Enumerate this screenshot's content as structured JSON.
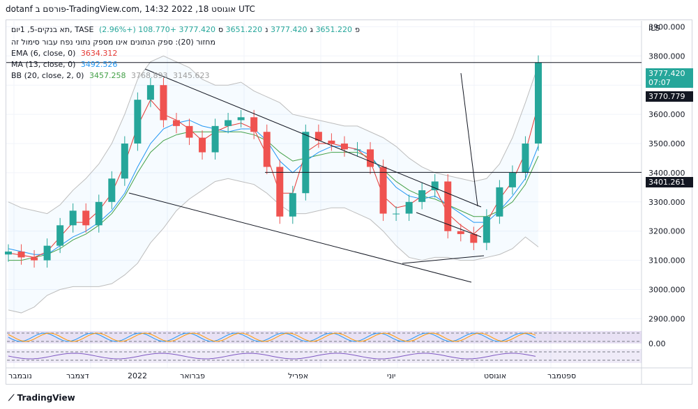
{
  "header": {
    "title": "dotanf פורסם ב-TradingView.com, 14:32 2022 ,18 אוגוסט UTC"
  },
  "legend": {
    "symbol": "תא בנקים-5, 1יום, TASE",
    "ohlc": {
      "o_label": "פ",
      "o": "3651.220",
      "h_label": "ג",
      "h": "3777.420",
      "l_label": "נ",
      "l": "3651.220",
      "c_label": "ס",
      "c": "3777.420",
      "change": "+108.770 (+2.96%)"
    },
    "volume_note": "מחזור (20): ספק הנתונים אינו מספק נתוני נפח עבור סימול זה",
    "ema": {
      "label": "EMA (6, close, 0)",
      "value": "3634.312",
      "color": "#e53935"
    },
    "ma": {
      "label": "MA (13, close, 0)",
      "value": "3492.526",
      "color": "#2196f3"
    },
    "bb": {
      "label": "BB (20, close, 2, 0)",
      "value": "3457.258",
      "value2": "3768.893",
      "value3": "3145.623",
      "color": "#43a047"
    }
  },
  "price_axis": {
    "unit": "ILS",
    "ticks": [
      "3900.000",
      "3800.000",
      "3700.000",
      "3600.000",
      "3500.000",
      "3400.000",
      "3300.000",
      "3200.000",
      "3100.000",
      "3000.000",
      "2900.000"
    ]
  },
  "oscillator_axis": {
    "ticks": [
      "0.00"
    ]
  },
  "price_labels": {
    "last": {
      "value": "3777.420",
      "countdown": "07:07",
      "color": "#26a69a"
    },
    "level1": {
      "value": "3770.779"
    },
    "level2": {
      "value": "3401.261"
    }
  },
  "time_axis": {
    "labels": [
      "נובמבר",
      "דצמבר",
      "2022",
      "פברואר",
      "אפריל",
      "יוני",
      "אוגוסט",
      "ספטמבר"
    ]
  },
  "footer": {
    "brand": "TradingView"
  },
  "chart_data": {
    "type": "candlestick",
    "ylim": [
      2870,
      3920
    ],
    "grid": true,
    "x": [
      "2021-11-01",
      "2021-11-08",
      "2021-11-15",
      "2021-11-22",
      "2021-11-29",
      "2021-12-06",
      "2021-12-13",
      "2021-12-20",
      "2021-12-27",
      "2022-01-03",
      "2022-01-10",
      "2022-01-17",
      "2022-01-24",
      "2022-01-31",
      "2022-02-07",
      "2022-02-14",
      "2022-02-21",
      "2022-02-28",
      "2022-03-07",
      "2022-03-14",
      "2022-03-21",
      "2022-03-28",
      "2022-04-04",
      "2022-04-11",
      "2022-04-18",
      "2022-04-25",
      "2022-05-02",
      "2022-05-09",
      "2022-05-16",
      "2022-05-23",
      "2022-05-30",
      "2022-06-06",
      "2022-06-13",
      "2022-06-20",
      "2022-06-27",
      "2022-07-04",
      "2022-07-11",
      "2022-07-18",
      "2022-07-25",
      "2022-08-01",
      "2022-08-08",
      "2022-08-15"
    ],
    "close": [
      3130,
      3110,
      3100,
      3150,
      3220,
      3270,
      3220,
      3300,
      3380,
      3500,
      3650,
      3700,
      3580,
      3560,
      3520,
      3470,
      3560,
      3580,
      3590,
      3540,
      3420,
      3250,
      3330,
      3540,
      3510,
      3500,
      3480,
      3480,
      3420,
      3260,
      3260,
      3300,
      3340,
      3370,
      3200,
      3190,
      3160,
      3250,
      3350,
      3400,
      3500,
      3777
    ],
    "ema6": [
      3125,
      3118,
      3110,
      3130,
      3180,
      3230,
      3230,
      3270,
      3330,
      3430,
      3560,
      3650,
      3600,
      3580,
      3550,
      3510,
      3540,
      3560,
      3570,
      3550,
      3460,
      3330,
      3330,
      3470,
      3500,
      3500,
      3490,
      3480,
      3440,
      3320,
      3280,
      3290,
      3320,
      3350,
      3260,
      3220,
      3190,
      3230,
      3310,
      3370,
      3470,
      3634
    ],
    "ma13": [
      3140,
      3130,
      3120,
      3120,
      3150,
      3180,
      3200,
      3230,
      3270,
      3330,
      3420,
      3500,
      3550,
      3570,
      3580,
      3560,
      3550,
      3540,
      3550,
      3550,
      3510,
      3440,
      3400,
      3440,
      3470,
      3490,
      3490,
      3480,
      3460,
      3400,
      3350,
      3320,
      3310,
      3320,
      3290,
      3260,
      3230,
      3230,
      3270,
      3320,
      3380,
      3492
    ],
    "bb_basis": [
      3100,
      3100,
      3110,
      3120,
      3140,
      3170,
      3190,
      3220,
      3260,
      3320,
      3400,
      3470,
      3510,
      3530,
      3540,
      3540,
      3540,
      3540,
      3540,
      3530,
      3510,
      3470,
      3440,
      3450,
      3460,
      3470,
      3470,
      3470,
      3450,
      3410,
      3370,
      3340,
      3320,
      3310,
      3290,
      3270,
      3250,
      3250,
      3270,
      3300,
      3360,
      3457
    ],
    "bb_upper": [
      3300,
      3280,
      3270,
      3260,
      3290,
      3340,
      3380,
      3430,
      3500,
      3600,
      3720,
      3780,
      3800,
      3780,
      3760,
      3720,
      3700,
      3700,
      3710,
      3680,
      3660,
      3640,
      3600,
      3590,
      3580,
      3570,
      3560,
      3560,
      3540,
      3520,
      3490,
      3450,
      3420,
      3400,
      3390,
      3380,
      3370,
      3380,
      3430,
      3520,
      3640,
      3769
    ],
    "bb_lower": [
      2930,
      2920,
      2940,
      2980,
      3000,
      3010,
      3010,
      3010,
      3020,
      3050,
      3090,
      3160,
      3210,
      3270,
      3310,
      3340,
      3370,
      3380,
      3370,
      3360,
      3330,
      3290,
      3260,
      3260,
      3270,
      3280,
      3280,
      3260,
      3240,
      3200,
      3150,
      3110,
      3100,
      3110,
      3110,
      3100,
      3100,
      3110,
      3120,
      3140,
      3180,
      3146
    ]
  }
}
